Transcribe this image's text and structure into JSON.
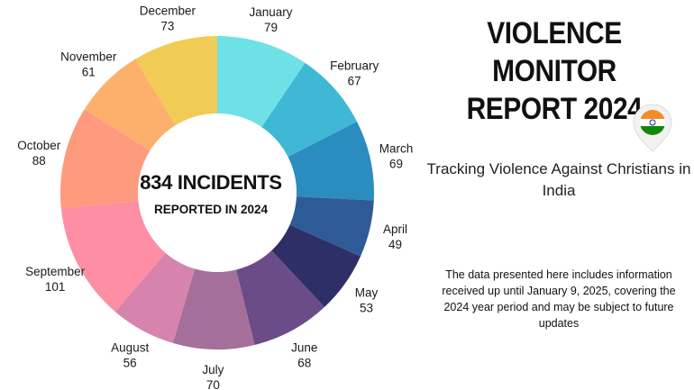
{
  "header": {
    "title_line1": "VIOLENCE MONITOR",
    "title_line2": "REPORT 2024",
    "subtitle": "Tracking Violence Against Christians in India",
    "note": "The data presented here includes information received up until January 9, 2025, covering the 2024 year period and may be subject to future updates"
  },
  "icons": {
    "flag": "india-flag-pin-icon"
  },
  "chart_data": {
    "type": "pie",
    "donut": true,
    "center_title": "834 INCIDENTS",
    "center_subtitle": "REPORTED IN 2024",
    "categories": [
      "January",
      "February",
      "March",
      "April",
      "May",
      "June",
      "July",
      "August",
      "September",
      "October",
      "November",
      "December"
    ],
    "values": [
      79,
      67,
      69,
      49,
      53,
      68,
      70,
      56,
      101,
      88,
      61,
      73
    ],
    "colors": [
      "#6ee1e6",
      "#3fb8d6",
      "#2b8dbf",
      "#2e5b96",
      "#2e2f66",
      "#6b4c88",
      "#a46f9b",
      "#d683ad",
      "#fe8ea3",
      "#fe9a7e",
      "#fdb06c",
      "#f0cc56"
    ]
  }
}
